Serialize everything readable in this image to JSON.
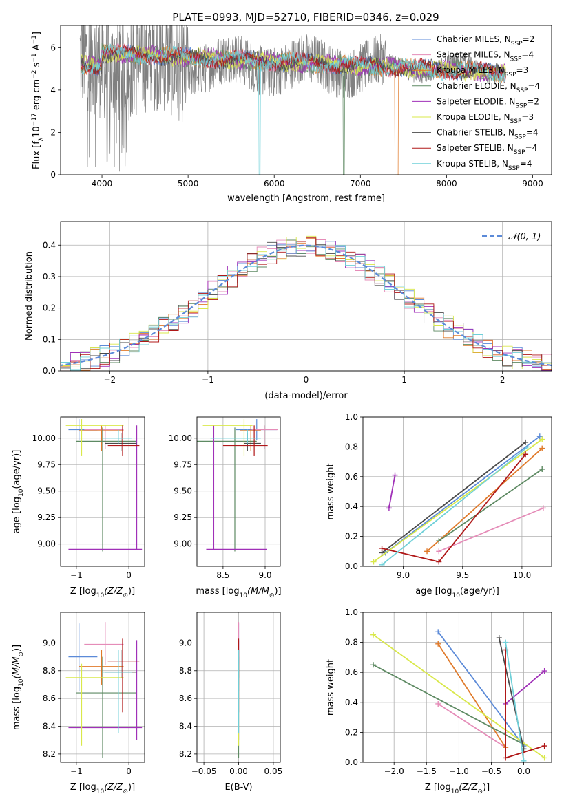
{
  "figure": {
    "title": "PLATE=0993, MJD=52710, FIBERID=0346, z=0.029"
  },
  "legend_series": [
    {
      "prefix": "Chabrier MILES, N",
      "sub": "SSP",
      "suffix": "=2",
      "color": "#5b8ad8"
    },
    {
      "prefix": "Salpeter MILES, N",
      "sub": "SSP",
      "suffix": "=4",
      "color": "#e58cb8"
    },
    {
      "prefix": "Kroupa MILES, N",
      "sub": "SSP",
      "suffix": "=3",
      "color": "#e07a2a"
    },
    {
      "prefix": "Chabrier ELODIE, N",
      "sub": "SSP",
      "suffix": "=4",
      "color": "#5e8a63"
    },
    {
      "prefix": "Salpeter ELODIE, N",
      "sub": "SSP",
      "suffix": "=2",
      "color": "#a030b8"
    },
    {
      "prefix": "Kroupa ELODIE, N",
      "sub": "SSP",
      "suffix": "=3",
      "color": "#d9e84a"
    },
    {
      "prefix": "Chabrier STELIB, N",
      "sub": "SSP",
      "suffix": "=4",
      "color": "#4a4a4a"
    },
    {
      "prefix": "Salpeter STELIB, N",
      "sub": "SSP",
      "suffix": "=4",
      "color": "#b01818"
    },
    {
      "prefix": "Kroupa STELIB, N",
      "sub": "SSP",
      "suffix": "=4",
      "color": "#6fd0d8"
    }
  ],
  "chart_data": [
    {
      "id": "spectrum",
      "type": "line",
      "xlabel": "wavelength [Angstrom, rest frame]",
      "ylabel_prefix": "Flux [f",
      "ylabel_sub": "λ",
      "ylabel_mid": "10",
      "ylabel_sup1": "−17",
      "ylabel_rest": " erg cm",
      "ylabel_sup2": "−2",
      "ylabel_rest2": " s",
      "ylabel_sup3": "−1",
      "ylabel_rest3": " A",
      "ylabel_sup4": "−1",
      "ylabel_end": "]",
      "xlim": [
        3520,
        9220
      ],
      "ylim": [
        0,
        7.05
      ],
      "xticks": [
        4000,
        5000,
        6000,
        7000,
        8000,
        9000
      ],
      "yticks": [
        0,
        2,
        4,
        6
      ],
      "data_grey": {
        "x_start": 3745,
        "x_end": 8690,
        "level_start": 5.3,
        "level_end": 5.0
      },
      "model_lines": "the nine models follow the continuum around 5.2–5.9 between 3760 and 7430 Å, continuing to 8690 Å",
      "drop_points": [
        3790,
        3850,
        5830,
        6810,
        7430
      ]
    },
    {
      "id": "residuals",
      "type": "line",
      "xlabel": "(data-model)/error",
      "ylabel": "Normed distribution",
      "xlim": [
        -2.5,
        2.5
      ],
      "ylim": [
        0,
        0.475
      ],
      "xticks": [
        -2,
        -1,
        0,
        1,
        2
      ],
      "yticks": [
        0.0,
        0.1,
        0.2,
        0.3,
        0.4
      ],
      "grid": true,
      "legend_label": "𝒩(0, 1)",
      "legend_position": "top-right",
      "gaussian": {
        "mean": 0,
        "sigma": 1
      }
    },
    {
      "id": "age-vs-Z",
      "type": "scatter",
      "xlabel_prefix": "Z [log",
      "xlabel_sub": "10",
      "xlabel_mid": "(Z/Z",
      "xlabel_sub2": "⊙",
      "xlabel_end": ")]",
      "ylabel_prefix": "age  [log",
      "ylabel_sub": "10",
      "ylabel_end": "(age/yr)]",
      "xlim": [
        -1.3,
        0.3
      ],
      "ylim": [
        8.79,
        10.2
      ],
      "xticks": [
        -1,
        0
      ],
      "yticks": [
        9.0,
        9.25,
        9.5,
        9.75,
        10.0
      ],
      "grid": true
    },
    {
      "id": "age-vs-mass",
      "type": "scatter",
      "xlabel_prefix": "mass [log",
      "xlabel_sub": "10",
      "xlabel_mid": "(M/M",
      "xlabel_sub2": "⊙",
      "xlabel_end": ")]",
      "xlim": [
        8.19,
        9.18
      ],
      "ylim": [
        8.79,
        10.2
      ],
      "xticks": [
        8.5,
        9.0
      ],
      "yticks": [
        9.0,
        9.25,
        9.5,
        9.75,
        10.0
      ],
      "grid": true
    },
    {
      "id": "weight-vs-age",
      "type": "line",
      "xlabel_prefix": "age  [log",
      "xlabel_sub": "10",
      "xlabel_end": "(age/yr)]",
      "ylabel": "mass weight",
      "xlim": [
        8.66,
        10.25
      ],
      "ylim": [
        0,
        1.0
      ],
      "xticks": [
        9.0,
        9.5,
        10.0
      ],
      "yticks": [
        0.0,
        0.2,
        0.4,
        0.6,
        0.8,
        1.0
      ],
      "grid": true
    },
    {
      "id": "mass-vs-Z",
      "type": "scatter",
      "xlabel_prefix": "Z [log",
      "xlabel_sub": "10",
      "xlabel_mid": "(Z/Z",
      "xlabel_sub2": "⊙",
      "xlabel_end": ")]",
      "ylabel_prefix": "mass [log",
      "ylabel_sub": "10",
      "ylabel_mid": "(M/M",
      "ylabel_sub2": "⊙",
      "ylabel_end": ")]",
      "xlim": [
        -1.3,
        0.3
      ],
      "ylim": [
        8.14,
        9.22
      ],
      "xticks": [
        -1,
        0
      ],
      "yticks": [
        8.2,
        8.4,
        8.6,
        8.8,
        9.0
      ],
      "grid": true
    },
    {
      "id": "mass-vs-EBV",
      "type": "scatter",
      "xlabel": "E(B-V)",
      "xlim": [
        -0.06,
        0.06
      ],
      "ylim": [
        8.14,
        9.22
      ],
      "xticks": [
        -0.05,
        0.0,
        0.05
      ],
      "xtick_labels": [
        "−0.05",
        "0.00",
        "0.05"
      ],
      "yticks": [
        8.2,
        8.4,
        8.6,
        8.8,
        9.0
      ],
      "grid": true
    },
    {
      "id": "weight-vs-Z",
      "type": "line",
      "xlabel_prefix": "Z [log",
      "xlabel_sub": "10",
      "xlabel_mid": "(Z/Z",
      "xlabel_sub2": "⊙",
      "xlabel_end": ")]",
      "ylabel": "mass weight",
      "xlim": [
        -2.48,
        0.43
      ],
      "ylim": [
        0,
        1.0
      ],
      "xticks": [
        -2.0,
        -1.5,
        -1.0,
        -0.5,
        0.0
      ],
      "xtick_labels": [
        "−2.0",
        "−1.5",
        "−1.0",
        "−0.5",
        "0.0"
      ],
      "yticks": [
        0.0,
        0.2,
        0.4,
        0.6,
        0.8,
        1.0
      ],
      "grid": true
    }
  ],
  "models": [
    {
      "color": "#5b8ad8",
      "Z": -0.95,
      "Zerr": [
        -1.15,
        -0.6
      ],
      "age": 10.08,
      "ageerr": [
        9.98,
        10.18
      ],
      "mass": 8.9,
      "merr": [
        8.65,
        9.14
      ],
      "w_age": [
        [
          8.85,
          0.09
        ],
        [
          10.15,
          0.87
        ]
      ],
      "w_Z": [
        [
          -1.32,
          0.87
        ],
        [
          0.0,
          0.11
        ]
      ]
    },
    {
      "color": "#e58cb8",
      "Z": -0.45,
      "Zerr": [
        -0.85,
        -0.1
      ],
      "age": 10.08,
      "ageerr": [
        9.9,
        10.12
      ],
      "mass": 8.99,
      "merr": [
        8.84,
        9.15
      ],
      "w_age": [
        [
          9.3,
          0.1
        ],
        [
          10.18,
          0.39
        ]
      ],
      "w_Z": [
        [
          -1.32,
          0.39
        ],
        [
          -0.28,
          0.1
        ]
      ]
    },
    {
      "color": "#e07a2a",
      "Z": -0.52,
      "Zerr": [
        -0.95,
        -0.1
      ],
      "age": 10.07,
      "ageerr": [
        9.88,
        10.12
      ],
      "mass": 8.83,
      "merr": [
        8.7,
        8.95
      ],
      "w_age": [
        [
          9.2,
          0.1
        ],
        [
          10.17,
          0.79
        ]
      ],
      "w_Z": [
        [
          -1.32,
          0.79
        ],
        [
          -0.28,
          0.1
        ]
      ]
    },
    {
      "color": "#5e8a63",
      "Z": -0.5,
      "Zerr": [
        -1.0,
        0.15
      ],
      "age": 9.97,
      "ageerr": [
        8.93,
        10.1
      ],
      "mass": 8.64,
      "merr": [
        8.17,
        8.9
      ],
      "w_age": [
        [
          9.3,
          0.17
        ],
        [
          10.17,
          0.65
        ]
      ],
      "w_Z": [
        [
          -2.32,
          0.65
        ],
        [
          0.0,
          0.12
        ]
      ]
    },
    {
      "color": "#a030b8",
      "Z": 0.15,
      "Zerr": [
        -1.15,
        0.25
      ],
      "age": 8.95,
      "ageerr": [
        8.95,
        10.12
      ],
      "mass": 8.39,
      "merr": [
        8.3,
        9.02
      ],
      "w_age": [
        [
          8.88,
          0.39
        ],
        [
          8.93,
          0.61
        ]
      ],
      "w_Z": [
        [
          -0.28,
          0.39
        ],
        [
          0.32,
          0.61
        ]
      ]
    },
    {
      "color": "#d9e84a",
      "Z": -0.9,
      "Zerr": [
        -1.2,
        -0.1
      ],
      "age": 10.12,
      "ageerr": [
        9.83,
        10.18
      ],
      "mass": 8.75,
      "merr": [
        8.26,
        8.85
      ],
      "w_age": [
        [
          8.75,
          0.03
        ],
        [
          10.17,
          0.85
        ]
      ],
      "w_Z": [
        [
          -2.32,
          0.85
        ],
        [
          0.32,
          0.03
        ]
      ]
    },
    {
      "color": "#4a4a4a",
      "Z": -0.15,
      "Zerr": [
        -0.45,
        0.15
      ],
      "age": 9.95,
      "ageerr": [
        9.88,
        10.05
      ],
      "mass": 8.79,
      "merr": [
        8.75,
        8.95
      ],
      "w_age": [
        [
          8.82,
          0.09
        ],
        [
          10.03,
          0.83
        ]
      ],
      "w_Z": [
        [
          -0.38,
          0.83
        ],
        [
          0.0,
          0.09
        ]
      ]
    },
    {
      "color": "#b01818",
      "Z": -0.12,
      "Zerr": [
        -0.4,
        0.2
      ],
      "age": 9.93,
      "ageerr": [
        9.83,
        10.12
      ],
      "mass": 8.87,
      "merr": [
        8.5,
        9.03
      ],
      "w_age": [
        [
          8.82,
          0.12
        ],
        [
          9.3,
          0.03
        ],
        [
          10.03,
          0.75
        ]
      ],
      "w_Z": [
        [
          -0.28,
          0.75
        ],
        [
          -0.28,
          0.03
        ],
        [
          0.32,
          0.11
        ]
      ]
    },
    {
      "color": "#6fd0d8",
      "Z": -0.2,
      "Zerr": [
        -0.5,
        0.05
      ],
      "age": 10.0,
      "ageerr": [
        9.95,
        10.08
      ],
      "mass": 8.79,
      "merr": [
        8.35,
        8.95
      ],
      "w_age": [
        [
          8.82,
          0.01
        ],
        [
          10.05,
          0.8
        ]
      ],
      "w_Z": [
        [
          -0.28,
          0.8
        ],
        [
          0.0,
          0.01
        ]
      ]
    }
  ]
}
